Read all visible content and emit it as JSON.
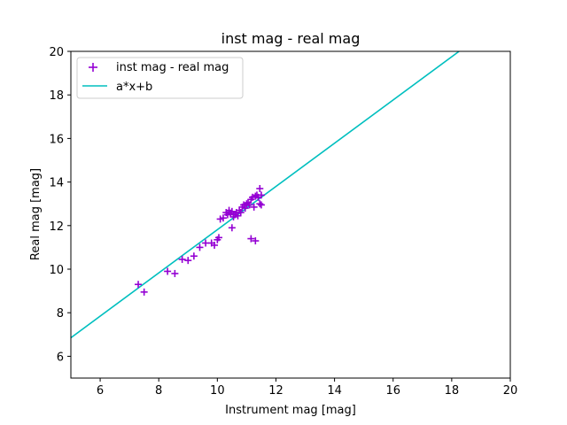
{
  "chart_data": {
    "type": "scatter",
    "title": "inst mag - real mag",
    "xlabel": "Instrument mag [mag]",
    "ylabel": "Real mag [mag]",
    "xlim": [
      5,
      20
    ],
    "ylim": [
      5,
      20
    ],
    "xticks": [
      "6",
      "8",
      "10",
      "12",
      "14",
      "16",
      "18",
      "20"
    ],
    "yticks": [
      "6",
      "8",
      "10",
      "12",
      "14",
      "16",
      "18",
      "20"
    ],
    "grid": false,
    "legend_placement": "top-left",
    "series": [
      {
        "name": "inst mag - real mag",
        "kind": "scatter",
        "marker": "plus",
        "color": "#9400d3",
        "points": [
          [
            7.3,
            9.3
          ],
          [
            7.5,
            8.95
          ],
          [
            8.3,
            9.9
          ],
          [
            8.55,
            9.8
          ],
          [
            8.8,
            10.45
          ],
          [
            9.0,
            10.4
          ],
          [
            9.2,
            10.6
          ],
          [
            9.4,
            11.0
          ],
          [
            9.6,
            11.2
          ],
          [
            9.8,
            11.2
          ],
          [
            9.9,
            11.1
          ],
          [
            10.0,
            11.35
          ],
          [
            10.05,
            11.45
          ],
          [
            10.1,
            12.3
          ],
          [
            10.2,
            12.35
          ],
          [
            10.3,
            12.6
          ],
          [
            10.35,
            12.5
          ],
          [
            10.4,
            12.7
          ],
          [
            10.45,
            12.55
          ],
          [
            10.5,
            12.65
          ],
          [
            10.5,
            11.9
          ],
          [
            10.55,
            12.4
          ],
          [
            10.6,
            12.5
          ],
          [
            10.65,
            12.6
          ],
          [
            10.7,
            12.45
          ],
          [
            10.75,
            12.7
          ],
          [
            10.8,
            12.6
          ],
          [
            10.85,
            12.85
          ],
          [
            10.9,
            12.95
          ],
          [
            10.95,
            12.8
          ],
          [
            11.0,
            13.0
          ],
          [
            11.05,
            13.05
          ],
          [
            11.1,
            12.95
          ],
          [
            11.15,
            13.2
          ],
          [
            11.2,
            13.3
          ],
          [
            11.25,
            12.85
          ],
          [
            11.3,
            13.35
          ],
          [
            11.35,
            13.4
          ],
          [
            11.4,
            13.3
          ],
          [
            11.45,
            13.7
          ],
          [
            11.45,
            13.0
          ],
          [
            11.5,
            12.95
          ],
          [
            11.5,
            13.4
          ],
          [
            11.15,
            11.4
          ],
          [
            11.3,
            11.3
          ]
        ]
      },
      {
        "name": "a*x+b",
        "kind": "line",
        "color": "#00bfbf",
        "x": [
          5,
          18.25
        ],
        "y": [
          6.85,
          20
        ]
      }
    ]
  }
}
